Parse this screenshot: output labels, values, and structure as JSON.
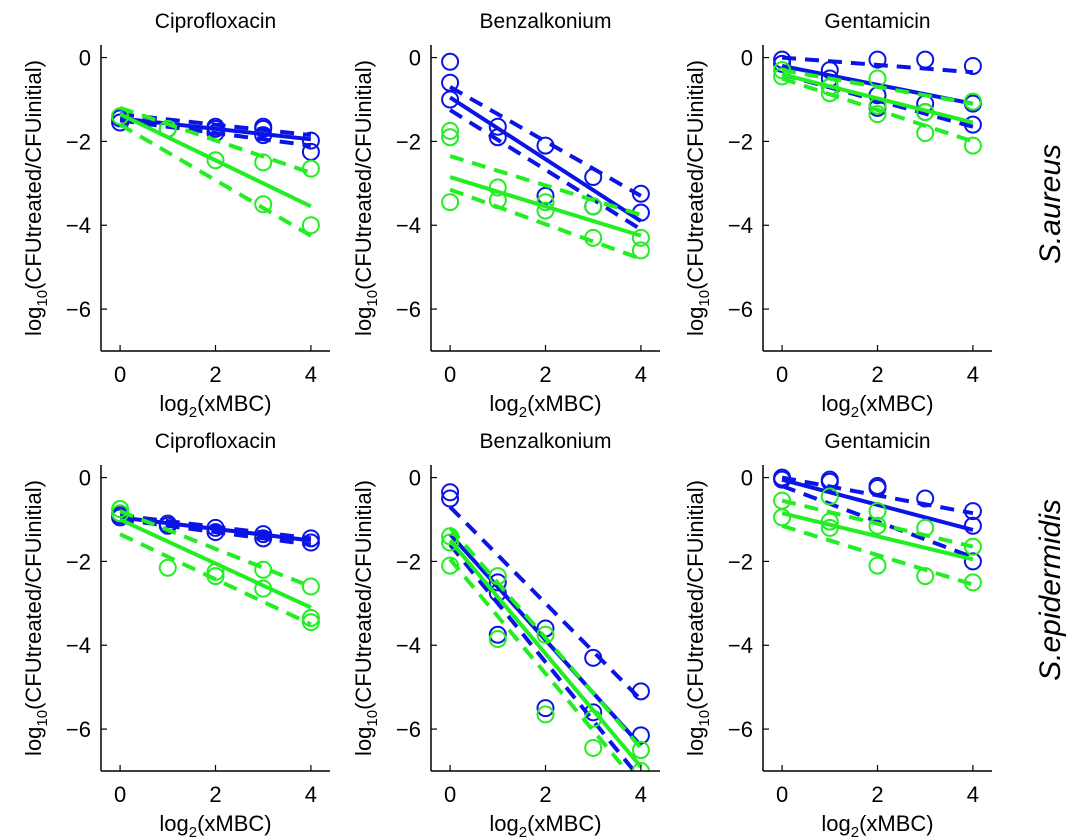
{
  "colors": {
    "blue": "#0a14e6",
    "green": "#22ee22"
  },
  "row_labels": [
    "S.aureus",
    "S.epidermidis"
  ],
  "chart_data": [
    {
      "type": "scatter",
      "title": "Ciprofloxacin",
      "xlabel": {
        "base": "log",
        "sub": "2",
        "rest": "(xMBC)"
      },
      "ylabel": {
        "base": "log",
        "sub": "10",
        "rest": "(CFUtreated/CFUinitial)"
      },
      "xlim": [
        -0.4,
        4.4
      ],
      "ylim": [
        -7,
        0.3
      ],
      "xticks": [
        0,
        2,
        4
      ],
      "yticks": [
        0,
        -2,
        -4,
        -6
      ],
      "series": [
        {
          "color": "blue",
          "points": [
            [
              0,
              -1.45
            ],
            [
              0,
              -1.55
            ],
            [
              1,
              -1.7
            ],
            [
              2,
              -1.65
            ],
            [
              2,
              -1.8
            ],
            [
              2,
              -1.7
            ],
            [
              3,
              -1.65
            ],
            [
              3,
              -1.85
            ],
            [
              3,
              -1.7
            ],
            [
              4,
              -1.98
            ],
            [
              4,
              -2.25
            ]
          ],
          "fit": [
            [
              0,
              -1.45
            ],
            [
              4,
              -1.95
            ]
          ],
          "band": [
            [
              [
                0,
                -1.35
              ],
              [
                4,
                -1.85
              ]
            ],
            [
              [
                0,
                -1.5
              ],
              [
                4,
                -2.1
              ]
            ]
          ]
        },
        {
          "color": "green",
          "points": [
            [
              0,
              -1.4
            ],
            [
              1,
              -1.7
            ],
            [
              2,
              -2.45
            ],
            [
              3,
              -2.5
            ],
            [
              3,
              -3.5
            ],
            [
              4,
              -2.65
            ],
            [
              4,
              -4.0
            ]
          ],
          "fit": [
            [
              0,
              -1.35
            ],
            [
              4,
              -3.55
            ]
          ],
          "band": [
            [
              [
                0,
                -1.2
              ],
              [
                4,
                -2.75
              ]
            ],
            [
              [
                0,
                -1.6
              ],
              [
                4,
                -4.25
              ]
            ]
          ]
        }
      ]
    },
    {
      "type": "scatter",
      "title": "Benzalkonium",
      "xlabel": {
        "base": "log",
        "sub": "2",
        "rest": "(xMBC)"
      },
      "ylabel": {
        "base": "log",
        "sub": "10",
        "rest": "(CFUtreated/CFUinitial)"
      },
      "xlim": [
        -0.4,
        4.4
      ],
      "ylim": [
        -7,
        0.3
      ],
      "xticks": [
        0,
        2,
        4
      ],
      "yticks": [
        0,
        -2,
        -4,
        -6
      ],
      "series": [
        {
          "color": "blue",
          "points": [
            [
              0,
              -0.1
            ],
            [
              0,
              -0.6
            ],
            [
              0,
              -1.0
            ],
            [
              1,
              -1.65
            ],
            [
              1,
              -1.9
            ],
            [
              2,
              -2.1
            ],
            [
              2,
              -3.3
            ],
            [
              3,
              -2.85
            ],
            [
              3,
              -3.55
            ],
            [
              4,
              -3.25
            ],
            [
              4,
              -3.7
            ]
          ],
          "fit": [
            [
              0,
              -0.95
            ],
            [
              4,
              -3.9
            ]
          ],
          "band": [
            [
              [
                0,
                -0.7
              ],
              [
                4,
                -3.3
              ]
            ],
            [
              [
                0,
                -1.25
              ],
              [
                4,
                -4.1
              ]
            ]
          ]
        },
        {
          "color": "green",
          "points": [
            [
              0,
              -1.75
            ],
            [
              0,
              -1.9
            ],
            [
              0,
              -3.45
            ],
            [
              1,
              -3.1
            ],
            [
              1,
              -3.4
            ],
            [
              2,
              -3.45
            ],
            [
              2,
              -3.65
            ],
            [
              3,
              -3.55
            ],
            [
              3,
              -4.3
            ],
            [
              4,
              -4.3
            ],
            [
              4,
              -4.6
            ]
          ],
          "fit": [
            [
              0,
              -2.85
            ],
            [
              4,
              -4.25
            ]
          ],
          "band": [
            [
              [
                0,
                -2.35
              ],
              [
                4,
                -3.75
              ]
            ],
            [
              [
                0,
                -3.15
              ],
              [
                4,
                -4.8
              ]
            ]
          ]
        }
      ]
    },
    {
      "type": "scatter",
      "title": "Gentamicin",
      "xlabel": {
        "base": "log",
        "sub": "2",
        "rest": "(xMBC)"
      },
      "ylabel": {
        "base": "log",
        "sub": "10",
        "rest": "(CFUtreated/CFUinitial)"
      },
      "xlim": [
        -0.4,
        4.4
      ],
      "ylim": [
        -7,
        0.3
      ],
      "xticks": [
        0,
        2,
        4
      ],
      "yticks": [
        0,
        -2,
        -4,
        -6
      ],
      "series": [
        {
          "color": "blue",
          "points": [
            [
              0,
              -0.05
            ],
            [
              0,
              -0.15
            ],
            [
              1,
              -0.3
            ],
            [
              1,
              -0.5
            ],
            [
              1,
              -0.7
            ],
            [
              2,
              -0.05
            ],
            [
              2,
              -0.9
            ],
            [
              2,
              -1.2
            ],
            [
              3,
              -0.05
            ],
            [
              3,
              -1.1
            ],
            [
              3,
              -1.3
            ],
            [
              4,
              -0.2
            ],
            [
              4,
              -1.1
            ],
            [
              4,
              -1.6
            ]
          ],
          "fit": [
            [
              0,
              -0.2
            ],
            [
              4,
              -1.1
            ]
          ],
          "band": [
            [
              [
                0,
                0.0
              ],
              [
                4,
                -0.35
              ]
            ],
            [
              [
                0,
                -0.4
              ],
              [
                4,
                -1.65
              ]
            ]
          ]
        },
        {
          "color": "green",
          "points": [
            [
              0,
              -0.3
            ],
            [
              0,
              -0.45
            ],
            [
              1,
              -0.7
            ],
            [
              1,
              -0.85
            ],
            [
              2,
              -0.5
            ],
            [
              2,
              -1.15
            ],
            [
              2,
              -1.35
            ],
            [
              3,
              -1.3
            ],
            [
              3,
              -1.8
            ],
            [
              4,
              -1.05
            ],
            [
              4,
              -2.1
            ]
          ],
          "fit": [
            [
              0,
              -0.4
            ],
            [
              4,
              -1.55
            ]
          ],
          "band": [
            [
              [
                0,
                -0.3
              ],
              [
                4,
                -1.1
              ]
            ],
            [
              [
                0,
                -0.5
              ],
              [
                4,
                -2.0
              ]
            ]
          ]
        }
      ]
    },
    {
      "type": "scatter",
      "title": "Ciprofloxacin",
      "xlabel": {
        "base": "log",
        "sub": "2",
        "rest": "(xMBC)"
      },
      "ylabel": {
        "base": "log",
        "sub": "10",
        "rest": "(CFUtreated/CFUinitial)"
      },
      "xlim": [
        -0.4,
        4.4
      ],
      "ylim": [
        -7,
        0.3
      ],
      "xticks": [
        0,
        2,
        4
      ],
      "yticks": [
        0,
        -2,
        -4,
        -6
      ],
      "series": [
        {
          "color": "blue",
          "points": [
            [
              0,
              -0.9
            ],
            [
              0,
              -0.95
            ],
            [
              1,
              -1.1
            ],
            [
              1,
              -1.15
            ],
            [
              2,
              -1.2
            ],
            [
              2,
              -1.3
            ],
            [
              3,
              -1.35
            ],
            [
              3,
              -1.45
            ],
            [
              4,
              -1.45
            ],
            [
              4,
              -1.55
            ]
          ],
          "fit": [
            [
              0,
              -0.95
            ],
            [
              4,
              -1.5
            ]
          ],
          "band": [
            [
              [
                0,
                -0.9
              ],
              [
                4,
                -1.45
              ]
            ],
            [
              [
                0,
                -1.0
              ],
              [
                4,
                -1.6
              ]
            ]
          ]
        },
        {
          "color": "green",
          "points": [
            [
              0,
              -0.75
            ],
            [
              0,
              -0.85
            ],
            [
              1,
              -2.15
            ],
            [
              2,
              -2.25
            ],
            [
              2,
              -2.35
            ],
            [
              3,
              -2.2
            ],
            [
              3,
              -2.65
            ],
            [
              4,
              -2.6
            ],
            [
              4,
              -3.35
            ],
            [
              4,
              -3.45
            ]
          ],
          "fit": [
            [
              0,
              -1.0
            ],
            [
              4,
              -3.1
            ]
          ],
          "band": [
            [
              [
                0,
                -0.8
              ],
              [
                4,
                -2.6
              ]
            ],
            [
              [
                0,
                -1.35
              ],
              [
                4,
                -3.5
              ]
            ]
          ]
        }
      ]
    },
    {
      "type": "scatter",
      "title": "Benzalkonium",
      "xlabel": {
        "base": "log",
        "sub": "2",
        "rest": "(xMBC)"
      },
      "ylabel": {
        "base": "log",
        "sub": "10",
        "rest": "(CFUtreated/CFUinitial)"
      },
      "xlim": [
        -0.4,
        4.4
      ],
      "ylim": [
        -7,
        0.3
      ],
      "xticks": [
        0,
        2,
        4
      ],
      "yticks": [
        0,
        -2,
        -4,
        -6
      ],
      "series": [
        {
          "color": "blue",
          "points": [
            [
              0,
              -0.35
            ],
            [
              0,
              -0.5
            ],
            [
              1,
              -2.5
            ],
            [
              1,
              -2.75
            ],
            [
              1,
              -3.75
            ],
            [
              2,
              -3.6
            ],
            [
              2,
              -5.5
            ],
            [
              3,
              -4.3
            ],
            [
              3,
              -5.6
            ],
            [
              4,
              -5.1
            ],
            [
              4,
              -6.15
            ]
          ],
          "fit": [
            [
              0,
              -1.35
            ],
            [
              4,
              -6.4
            ]
          ],
          "band": [
            [
              [
                0,
                -0.7
              ],
              [
                4,
                -5.3
              ]
            ],
            [
              [
                0,
                -1.6
              ],
              [
                4,
                -7.2
              ]
            ]
          ]
        },
        {
          "color": "green",
          "points": [
            [
              0,
              -1.4
            ],
            [
              0,
              -1.55
            ],
            [
              0,
              -2.1
            ],
            [
              1,
              -2.35
            ],
            [
              1,
              -3.85
            ],
            [
              2,
              -3.75
            ],
            [
              2,
              -5.65
            ],
            [
              3,
              -6.45
            ],
            [
              3,
              -5.75
            ],
            [
              4,
              -6.5
            ],
            [
              4,
              -7.0
            ]
          ],
          "fit": [
            [
              0,
              -1.5
            ],
            [
              4,
              -6.9
            ]
          ],
          "band": [
            [
              [
                0,
                -1.2
              ],
              [
                4,
                -6.45
              ]
            ],
            [
              [
                0,
                -1.95
              ],
              [
                4,
                -7.4
              ]
            ]
          ]
        }
      ]
    },
    {
      "type": "scatter",
      "title": "Gentamicin",
      "xlabel": {
        "base": "log",
        "sub": "2",
        "rest": "(xMBC)"
      },
      "ylabel": {
        "base": "log",
        "sub": "10",
        "rest": "(CFUtreated/CFUinitial)"
      },
      "xlim": [
        -0.4,
        4.4
      ],
      "ylim": [
        -7,
        0.3
      ],
      "xticks": [
        0,
        2,
        4
      ],
      "yticks": [
        0,
        -2,
        -4,
        -6
      ],
      "series": [
        {
          "color": "blue",
          "points": [
            [
              0,
              0.0
            ],
            [
              0,
              -0.05
            ],
            [
              1,
              -0.05
            ],
            [
              1,
              -0.1
            ],
            [
              2,
              -0.2
            ],
            [
              2,
              -0.25
            ],
            [
              3,
              -0.5
            ],
            [
              4,
              -0.8
            ],
            [
              4,
              -1.15
            ],
            [
              4,
              -2.0
            ]
          ],
          "fit": [
            [
              0,
              -0.05
            ],
            [
              4,
              -1.25
            ]
          ],
          "band": [
            [
              [
                0,
                0.0
              ],
              [
                4,
                -0.85
              ]
            ],
            [
              [
                0,
                -0.2
              ],
              [
                4,
                -1.9
              ]
            ]
          ]
        },
        {
          "color": "green",
          "points": [
            [
              0,
              -0.55
            ],
            [
              0,
              -0.95
            ],
            [
              1,
              -1.05
            ],
            [
              1,
              -1.2
            ],
            [
              1,
              -0.45
            ],
            [
              2,
              -0.8
            ],
            [
              2,
              -1.15
            ],
            [
              2,
              -2.1
            ],
            [
              3,
              -1.2
            ],
            [
              3,
              -2.35
            ],
            [
              4,
              -1.65
            ],
            [
              4,
              -2.5
            ]
          ],
          "fit": [
            [
              0,
              -0.85
            ],
            [
              4,
              -1.95
            ]
          ],
          "band": [
            [
              [
                0,
                -0.55
              ],
              [
                4,
                -1.65
              ]
            ],
            [
              [
                0,
                -1.15
              ],
              [
                4,
                -2.55
              ]
            ]
          ]
        }
      ]
    }
  ]
}
